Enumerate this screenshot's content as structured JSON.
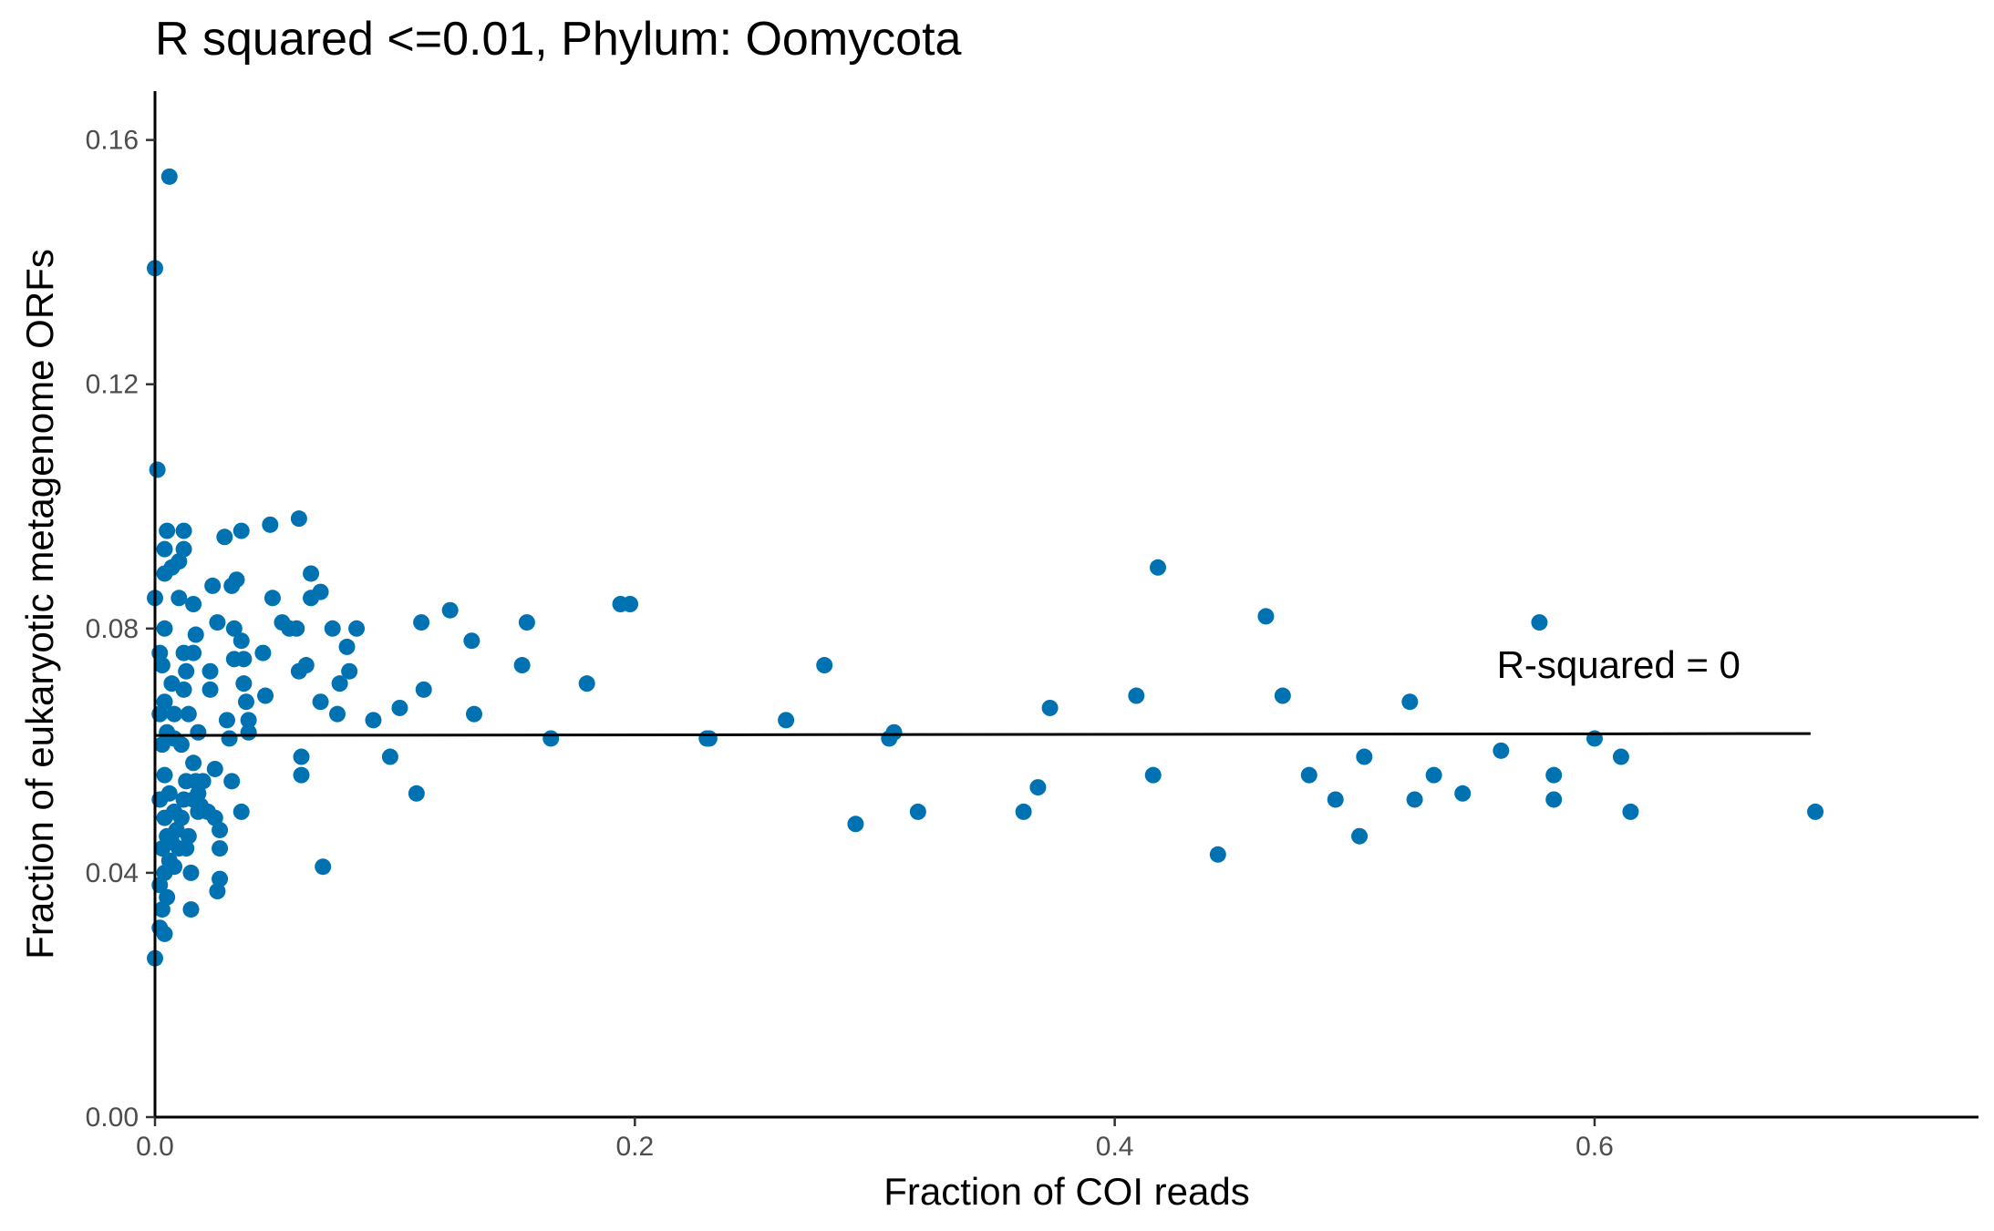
{
  "chart_data": {
    "type": "scatter",
    "title": "R squared <=0.01, Phylum:  Oomycota",
    "xlabel": "Fraction of COI reads",
    "ylabel": "Fraction of eukaryotic metagenome ORFs",
    "xlim": [
      0,
      0.76
    ],
    "ylim": [
      0,
      0.168
    ],
    "xticks": [
      0.0,
      0.2,
      0.4,
      0.6
    ],
    "xtick_labels": [
      "0.0",
      "0.2",
      "0.4",
      "0.6"
    ],
    "yticks": [
      0.0,
      0.04,
      0.08,
      0.12,
      0.16
    ],
    "ytick_labels": [
      "0.00",
      "0.04",
      "0.08",
      "0.12",
      "0.16"
    ],
    "grid": false,
    "point_color": "#0072B2",
    "line_color": "#000000",
    "annotation": {
      "text": "R-squared =  0",
      "x": 0.61,
      "y": 0.074
    },
    "fit_line": {
      "x": [
        0.0,
        0.69
      ],
      "y": [
        0.0625,
        0.0628
      ]
    },
    "points": [
      [
        0.006,
        0.154
      ],
      [
        0.0,
        0.139
      ],
      [
        0.001,
        0.106
      ],
      [
        0.0,
        0.085
      ],
      [
        0.0,
        0.026
      ],
      [
        0.005,
        0.096
      ],
      [
        0.012,
        0.096
      ],
      [
        0.004,
        0.093
      ],
      [
        0.012,
        0.093
      ],
      [
        0.004,
        0.089
      ],
      [
        0.007,
        0.09
      ],
      [
        0.01,
        0.091
      ],
      [
        0.01,
        0.085
      ],
      [
        0.004,
        0.08
      ],
      [
        0.002,
        0.076
      ],
      [
        0.003,
        0.074
      ],
      [
        0.007,
        0.071
      ],
      [
        0.004,
        0.068
      ],
      [
        0.002,
        0.066
      ],
      [
        0.005,
        0.063
      ],
      [
        0.008,
        0.062
      ],
      [
        0.003,
        0.061
      ],
      [
        0.004,
        0.056
      ],
      [
        0.006,
        0.053
      ],
      [
        0.002,
        0.052
      ],
      [
        0.004,
        0.049
      ],
      [
        0.005,
        0.046
      ],
      [
        0.003,
        0.044
      ],
      [
        0.006,
        0.042
      ],
      [
        0.004,
        0.04
      ],
      [
        0.002,
        0.038
      ],
      [
        0.005,
        0.036
      ],
      [
        0.003,
        0.034
      ],
      [
        0.002,
        0.031
      ],
      [
        0.004,
        0.03
      ],
      [
        0.008,
        0.05
      ],
      [
        0.009,
        0.047
      ],
      [
        0.01,
        0.044
      ],
      [
        0.008,
        0.041
      ],
      [
        0.007,
        0.045
      ],
      [
        0.012,
        0.052
      ],
      [
        0.013,
        0.055
      ],
      [
        0.011,
        0.049
      ],
      [
        0.014,
        0.046
      ],
      [
        0.013,
        0.044
      ],
      [
        0.015,
        0.04
      ],
      [
        0.015,
        0.034
      ],
      [
        0.016,
        0.052
      ],
      [
        0.018,
        0.05
      ],
      [
        0.016,
        0.058
      ],
      [
        0.017,
        0.055
      ],
      [
        0.018,
        0.053
      ],
      [
        0.012,
        0.07
      ],
      [
        0.013,
        0.073
      ],
      [
        0.016,
        0.076
      ],
      [
        0.017,
        0.079
      ],
      [
        0.016,
        0.084
      ],
      [
        0.012,
        0.076
      ],
      [
        0.014,
        0.066
      ],
      [
        0.018,
        0.063
      ],
      [
        0.011,
        0.061
      ],
      [
        0.008,
        0.066
      ],
      [
        0.019,
        0.051
      ],
      [
        0.02,
        0.055
      ],
      [
        0.022,
        0.05
      ],
      [
        0.023,
        0.07
      ],
      [
        0.023,
        0.073
      ],
      [
        0.024,
        0.087
      ],
      [
        0.026,
        0.081
      ],
      [
        0.025,
        0.057
      ],
      [
        0.025,
        0.049
      ],
      [
        0.027,
        0.047
      ],
      [
        0.027,
        0.044
      ],
      [
        0.027,
        0.039
      ],
      [
        0.026,
        0.037
      ],
      [
        0.029,
        0.095
      ],
      [
        0.032,
        0.087
      ],
      [
        0.033,
        0.08
      ],
      [
        0.03,
        0.065
      ],
      [
        0.031,
        0.062
      ],
      [
        0.033,
        0.075
      ],
      [
        0.034,
        0.088
      ],
      [
        0.036,
        0.096
      ],
      [
        0.036,
        0.078
      ],
      [
        0.037,
        0.075
      ],
      [
        0.037,
        0.071
      ],
      [
        0.038,
        0.068
      ],
      [
        0.039,
        0.065
      ],
      [
        0.039,
        0.063
      ],
      [
        0.032,
        0.055
      ],
      [
        0.036,
        0.05
      ],
      [
        0.045,
        0.076
      ],
      [
        0.046,
        0.069
      ],
      [
        0.048,
        0.097
      ],
      [
        0.049,
        0.085
      ],
      [
        0.053,
        0.081
      ],
      [
        0.056,
        0.08
      ],
      [
        0.059,
        0.08
      ],
      [
        0.06,
        0.098
      ],
      [
        0.06,
        0.073
      ],
      [
        0.061,
        0.059
      ],
      [
        0.061,
        0.056
      ],
      [
        0.063,
        0.074
      ],
      [
        0.065,
        0.089
      ],
      [
        0.065,
        0.085
      ],
      [
        0.069,
        0.086
      ],
      [
        0.069,
        0.068
      ],
      [
        0.07,
        0.041
      ],
      [
        0.074,
        0.08
      ],
      [
        0.076,
        0.066
      ],
      [
        0.077,
        0.071
      ],
      [
        0.08,
        0.077
      ],
      [
        0.081,
        0.073
      ],
      [
        0.084,
        0.08
      ],
      [
        0.091,
        0.065
      ],
      [
        0.098,
        0.059
      ],
      [
        0.102,
        0.067
      ],
      [
        0.109,
        0.053
      ],
      [
        0.111,
        0.081
      ],
      [
        0.112,
        0.07
      ],
      [
        0.123,
        0.083
      ],
      [
        0.132,
        0.078
      ],
      [
        0.133,
        0.066
      ],
      [
        0.153,
        0.074
      ],
      [
        0.155,
        0.081
      ],
      [
        0.165,
        0.062
      ],
      [
        0.18,
        0.071
      ],
      [
        0.194,
        0.084
      ],
      [
        0.198,
        0.084
      ],
      [
        0.23,
        0.062
      ],
      [
        0.231,
        0.062
      ],
      [
        0.263,
        0.065
      ],
      [
        0.279,
        0.074
      ],
      [
        0.292,
        0.048
      ],
      [
        0.306,
        0.062
      ],
      [
        0.308,
        0.063
      ],
      [
        0.318,
        0.05
      ],
      [
        0.362,
        0.05
      ],
      [
        0.368,
        0.054
      ],
      [
        0.373,
        0.067
      ],
      [
        0.409,
        0.069
      ],
      [
        0.416,
        0.056
      ],
      [
        0.418,
        0.09
      ],
      [
        0.443,
        0.043
      ],
      [
        0.463,
        0.082
      ],
      [
        0.47,
        0.069
      ],
      [
        0.481,
        0.056
      ],
      [
        0.492,
        0.052
      ],
      [
        0.502,
        0.046
      ],
      [
        0.504,
        0.059
      ],
      [
        0.523,
        0.068
      ],
      [
        0.525,
        0.052
      ],
      [
        0.533,
        0.056
      ],
      [
        0.545,
        0.053
      ],
      [
        0.561,
        0.06
      ],
      [
        0.577,
        0.081
      ],
      [
        0.583,
        0.056
      ],
      [
        0.583,
        0.052
      ],
      [
        0.6,
        0.062
      ],
      [
        0.611,
        0.059
      ],
      [
        0.615,
        0.05
      ],
      [
        0.692,
        0.05
      ]
    ]
  }
}
